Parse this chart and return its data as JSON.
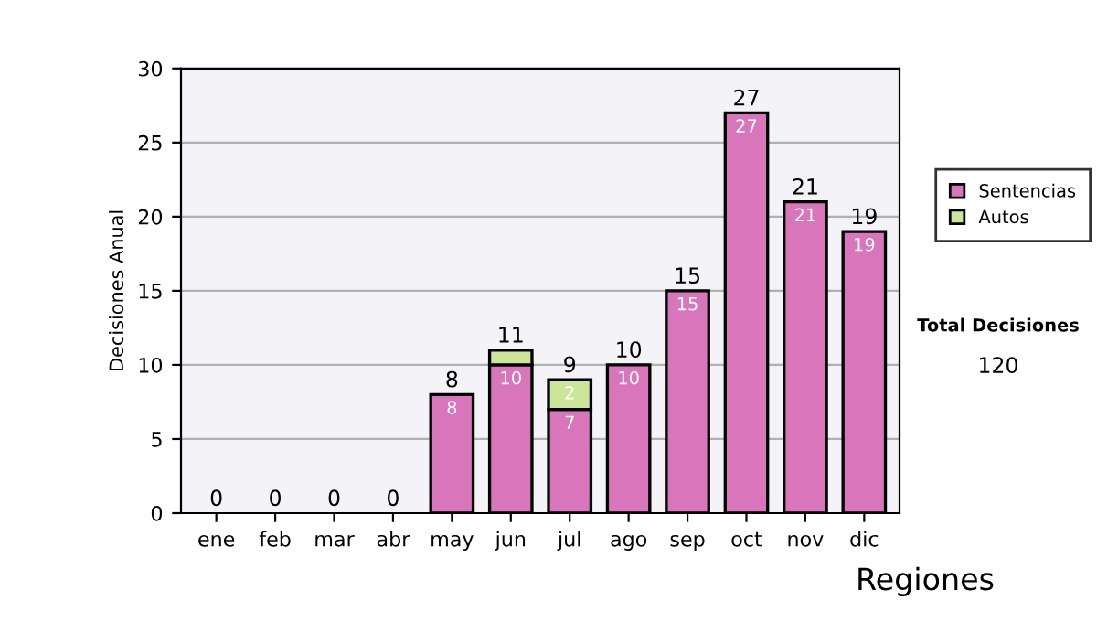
{
  "chart_data": {
    "type": "bar",
    "stacked": true,
    "ylabel": "Decisiones Anual",
    "categories": [
      "ene",
      "feb",
      "mar",
      "abr",
      "may",
      "jun",
      "jul",
      "ago",
      "sep",
      "oct",
      "nov",
      "dic"
    ],
    "series": [
      {
        "name": "Sentencias",
        "color": "#d976bb",
        "values": [
          0,
          0,
          0,
          0,
          8,
          10,
          7,
          10,
          15,
          27,
          21,
          19
        ],
        "value_labels": [
          null,
          null,
          null,
          null,
          "8",
          "10",
          "7",
          "10",
          "15",
          "27",
          "21",
          "19"
        ]
      },
      {
        "name": "Autos",
        "color": "#cce699",
        "values": [
          0,
          0,
          0,
          0,
          0,
          1,
          2,
          0,
          0,
          0,
          0,
          0
        ],
        "value_labels": [
          null,
          null,
          null,
          null,
          null,
          null,
          "2",
          null,
          null,
          null,
          null,
          null
        ]
      }
    ],
    "totals": [
      "0",
      "0",
      "0",
      "0",
      "8",
      "11",
      "9",
      "10",
      "15",
      "27",
      "21",
      "19"
    ],
    "ylim": [
      0,
      30
    ],
    "yticks": [
      0,
      5,
      10,
      15,
      20,
      25,
      30
    ],
    "grid": "y",
    "legend": "right",
    "annotations": [
      "Total Decisiones",
      "120",
      "Regiones"
    ]
  }
}
